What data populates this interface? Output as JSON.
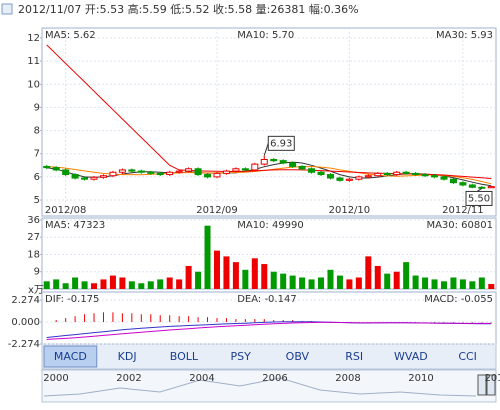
{
  "header": {
    "text": "2012/11/07 开:5.53 高:5.59 低:5.52 收:5.58 量:26381 幅:0.36%"
  },
  "tabs": [
    "MACD",
    "KDJ",
    "BOLL",
    "PSY",
    "OBV",
    "RSI",
    "WVAD",
    "CCI"
  ],
  "active_tab": "MACD",
  "timeline": [
    "2000",
    "2002",
    "2004",
    "2006",
    "2008",
    "2010",
    "201"
  ],
  "chart_data": [
    {
      "type": "candlestick",
      "up_color": "#ee0000",
      "down_color": "#009900",
      "grid": true,
      "ylim": [
        4.31,
        12.43
      ],
      "yticks": [
        5,
        6,
        7,
        8,
        9,
        10,
        11,
        12
      ],
      "categories": [
        null,
        null,
        "2012/08",
        null,
        null,
        null,
        null,
        null,
        null,
        null,
        null,
        null,
        null,
        null,
        null,
        null,
        null,
        null,
        "2012/09",
        null,
        null,
        null,
        null,
        null,
        null,
        null,
        null,
        null,
        null,
        null,
        null,
        null,
        "2012/10",
        null,
        null,
        null,
        null,
        null,
        null,
        null,
        null,
        null,
        null,
        null,
        "2012/11",
        null,
        null,
        null
      ],
      "open": [
        6.45,
        6.4,
        6.3,
        6.1,
        5.95,
        5.9,
        5.98,
        6.05,
        6.2,
        6.3,
        6.25,
        6.2,
        6.15,
        6.1,
        6.2,
        6.25,
        6.35,
        6.1,
        6.0,
        6.15,
        6.25,
        6.35,
        6.3,
        6.55,
        6.75,
        6.7,
        6.6,
        6.45,
        6.35,
        6.2,
        6.1,
        5.95,
        5.85,
        5.9,
        6.0,
        6.05,
        6.15,
        6.1,
        6.2,
        6.15,
        6.1,
        6.05,
        6.0,
        5.9,
        5.75,
        5.65,
        5.55,
        5.53
      ],
      "high": [
        6.51,
        6.46,
        6.36,
        6.16,
        6.01,
        6.04,
        6.11,
        6.26,
        6.36,
        6.36,
        6.31,
        6.26,
        6.21,
        6.26,
        6.31,
        6.41,
        6.41,
        6.16,
        6.21,
        6.31,
        6.41,
        6.41,
        6.61,
        6.93,
        6.81,
        6.76,
        6.66,
        6.51,
        6.41,
        6.26,
        6.16,
        6.01,
        5.96,
        6.06,
        6.11,
        6.21,
        6.21,
        6.26,
        6.26,
        6.21,
        6.16,
        6.11,
        6.06,
        5.96,
        5.81,
        5.71,
        5.61,
        5.59
      ],
      "low": [
        6.34,
        6.24,
        6.04,
        5.89,
        5.84,
        5.84,
        5.92,
        5.99,
        6.14,
        6.19,
        6.14,
        6.09,
        6.04,
        6.04,
        6.14,
        6.19,
        6.04,
        5.94,
        5.94,
        6.09,
        6.19,
        6.24,
        6.24,
        6.49,
        6.64,
        6.54,
        6.39,
        6.29,
        6.14,
        6.04,
        5.89,
        5.79,
        5.79,
        5.84,
        5.94,
        5.99,
        6.04,
        6.04,
        6.09,
        6.04,
        5.99,
        5.94,
        5.84,
        5.69,
        5.59,
        5.51,
        5.5,
        5.52
      ],
      "close": [
        6.4,
        6.3,
        6.1,
        5.95,
        5.9,
        5.98,
        6.05,
        6.2,
        6.3,
        6.25,
        6.2,
        6.15,
        6.1,
        6.2,
        6.25,
        6.35,
        6.1,
        6.0,
        6.15,
        6.25,
        6.35,
        6.3,
        6.55,
        6.75,
        6.7,
        6.6,
        6.45,
        6.35,
        6.2,
        6.1,
        5.95,
        5.85,
        5.9,
        6.0,
        6.05,
        6.15,
        6.1,
        6.2,
        6.15,
        6.1,
        6.05,
        6.0,
        5.9,
        5.75,
        5.65,
        5.55,
        5.53,
        5.58
      ],
      "annotations": {
        "max": "6.93",
        "min": "5.50"
      },
      "series": [
        {
          "name": "MA5: 5.62",
          "color": "#1f55c0",
          "line_color": "#333333",
          "values": [
            6.4,
            6.33,
            6.22,
            6.1,
            6.0,
            5.98,
            6.0,
            6.05,
            6.12,
            6.18,
            6.22,
            6.22,
            6.2,
            6.18,
            6.18,
            6.21,
            6.2,
            6.16,
            6.17,
            6.17,
            6.17,
            6.25,
            6.32,
            6.44,
            6.53,
            6.6,
            6.64,
            6.6,
            6.5,
            6.38,
            6.25,
            6.1,
            6.0,
            5.95,
            5.95,
            5.99,
            6.04,
            6.1,
            6.13,
            6.14,
            6.12,
            6.1,
            6.04,
            5.96,
            5.87,
            5.77,
            5.68,
            5.62
          ]
        },
        {
          "name": "MA10: 5.70",
          "color": "#ff8000",
          "line_color": "#ff8000",
          "values": [
            6.45,
            6.42,
            6.38,
            6.32,
            6.26,
            6.2,
            6.15,
            6.12,
            6.1,
            6.1,
            6.09,
            6.11,
            6.13,
            6.15,
            6.17,
            6.19,
            6.18,
            6.17,
            6.17,
            6.18,
            6.19,
            6.2,
            6.23,
            6.28,
            6.33,
            6.38,
            6.42,
            6.44,
            6.45,
            6.42,
            6.38,
            6.3,
            6.24,
            6.18,
            6.12,
            6.07,
            6.04,
            6.03,
            6.04,
            6.06,
            6.08,
            6.08,
            6.06,
            6.02,
            5.96,
            5.89,
            5.8,
            5.7
          ]
        },
        {
          "name": "MA30: 5.93",
          "color": "#ee0000",
          "line_color": "#ee0000",
          "values": [
            11.7,
            11.3,
            10.9,
            10.5,
            10.1,
            9.7,
            9.3,
            8.9,
            8.5,
            8.1,
            7.7,
            7.3,
            6.9,
            6.5,
            6.3,
            6.28,
            6.26,
            6.25,
            6.24,
            6.23,
            6.23,
            6.24,
            6.26,
            6.28,
            6.3,
            6.31,
            6.31,
            6.3,
            6.29,
            6.27,
            6.25,
            6.23,
            6.21,
            6.19,
            6.17,
            6.16,
            6.15,
            6.14,
            6.13,
            6.12,
            6.11,
            6.1,
            6.08,
            6.05,
            6.02,
            5.99,
            5.96,
            5.93
          ]
        }
      ]
    },
    {
      "type": "bar",
      "unit": "x万",
      "ylim": [
        0,
        37
      ],
      "yticks": [
        9,
        18,
        27,
        36
      ],
      "grid": true,
      "values": [
        4,
        5,
        3,
        6,
        4,
        3,
        5,
        7,
        6,
        4,
        3,
        4,
        5,
        6,
        5,
        12,
        9,
        33,
        20,
        17,
        14,
        10,
        16,
        13,
        9,
        8,
        7,
        6,
        5,
        6,
        10,
        7,
        5,
        6,
        17,
        12,
        8,
        9,
        14,
        7,
        6,
        5,
        4,
        6,
        5,
        4,
        6,
        2.6
      ],
      "legend": [
        {
          "name": "MA5: 47323",
          "color": "#1f55c0"
        },
        {
          "name": "MA10: 49990",
          "color": "#ff8000"
        },
        {
          "name": "MA30: 60801",
          "color": "#ee0000"
        }
      ]
    },
    {
      "type": "macd",
      "ylim": [
        -2.274,
        3.1
      ],
      "yticks": [
        2.274,
        {
          "value": 0,
          "label": "0.000"
        },
        -2.274
      ],
      "series": [
        {
          "name": "DIF: -0.175",
          "color": "#3333cc",
          "values": [
            -1.6,
            -1.5,
            -1.4,
            -1.3,
            -1.2,
            -1.1,
            -1.0,
            -0.9,
            -0.8,
            -0.72,
            -0.65,
            -0.58,
            -0.52,
            -0.46,
            -0.41,
            -0.36,
            -0.32,
            -0.28,
            -0.24,
            -0.2,
            -0.16,
            -0.12,
            -0.08,
            -0.04,
            0,
            0.02,
            0.03,
            0.03,
            0.02,
            0,
            -0.02,
            -0.05,
            -0.08,
            -0.1,
            -0.1,
            -0.09,
            -0.08,
            -0.08,
            -0.08,
            -0.09,
            -0.1,
            -0.11,
            -0.12,
            -0.14,
            -0.16,
            -0.17,
            -0.18,
            -0.175
          ]
        },
        {
          "name": "DEA: -0.147",
          "color": "#cc00cc",
          "values": [
            -1.8,
            -1.75,
            -1.7,
            -1.62,
            -1.55,
            -1.47,
            -1.39,
            -1.3,
            -1.22,
            -1.14,
            -1.06,
            -0.98,
            -0.9,
            -0.83,
            -0.76,
            -0.69,
            -0.62,
            -0.56,
            -0.5,
            -0.44,
            -0.38,
            -0.33,
            -0.28,
            -0.23,
            -0.18,
            -0.14,
            -0.1,
            -0.07,
            -0.05,
            -0.04,
            -0.04,
            -0.05,
            -0.06,
            -0.07,
            -0.08,
            -0.08,
            -0.08,
            -0.08,
            -0.08,
            -0.09,
            -0.1,
            -0.11,
            -0.12,
            -0.13,
            -0.14,
            -0.14,
            -0.145,
            -0.147
          ]
        }
      ],
      "histogram": {
        "name": "MACD: -0.055",
        "color": "#ee0000",
        "up_color": "#ee0000",
        "down_color": "#009900",
        "values": [
          0,
          0.2,
          0.4,
          0.6,
          0.8,
          0.9,
          1.0,
          1.0,
          0.9,
          0.9,
          0.8,
          0.8,
          0.7,
          0.7,
          0.6,
          0.6,
          0.5,
          0.5,
          0.4,
          0.4,
          0.3,
          0.3,
          0.3,
          0.3,
          0.2,
          0.2,
          0.2,
          0.1,
          0.1,
          0.05,
          0.02,
          -0.03,
          -0.05,
          -0.04,
          -0.03,
          -0.02,
          -0.02,
          -0.03,
          -0.03,
          -0.04,
          -0.04,
          -0.05,
          -0.05,
          -0.06,
          -0.07,
          -0.07,
          -0.06,
          -0.055
        ]
      }
    }
  ]
}
